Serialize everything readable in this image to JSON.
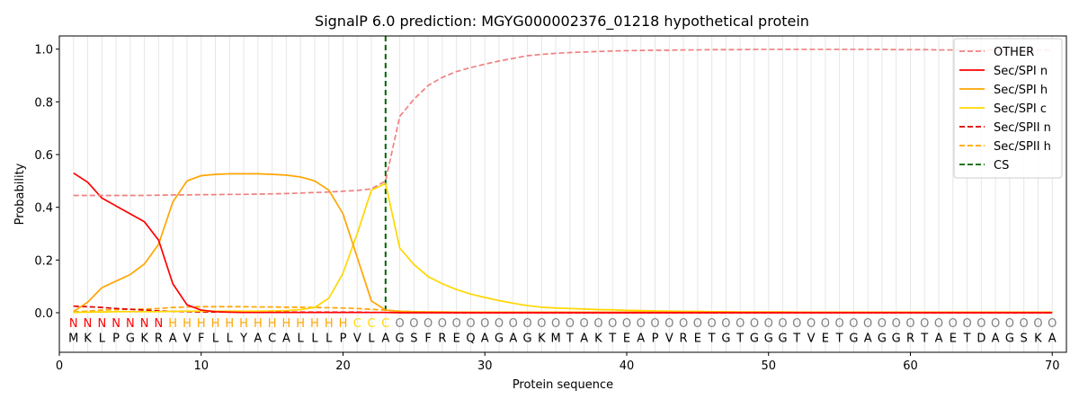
{
  "chart_data": {
    "type": "line",
    "title": "SignalP 6.0 prediction: MGYG000002376_01218 hypothetical protein",
    "xlabel": "Protein sequence",
    "ylabel": "Probability",
    "xlim": [
      0,
      71
    ],
    "ylim": [
      -0.15,
      1.05
    ],
    "x_ticks": [
      0,
      10,
      20,
      30,
      40,
      50,
      60,
      70
    ],
    "y_ticks": [
      0.0,
      0.2,
      0.4,
      0.6,
      0.8,
      1.0
    ],
    "x_tick_labels": [
      "0",
      "10",
      "20",
      "30",
      "40",
      "50",
      "60",
      "70"
    ],
    "y_tick_labels": [
      "0.0",
      "0.2",
      "0.4",
      "0.6",
      "0.8",
      "1.0"
    ],
    "grid": "vertical lines at every residue",
    "legend_position": "top-right",
    "sequence": [
      "M",
      "K",
      "L",
      "P",
      "G",
      "K",
      "R",
      "A",
      "V",
      "F",
      "L",
      "L",
      "Y",
      "A",
      "C",
      "A",
      "L",
      "L",
      "L",
      "P",
      "V",
      "L",
      "A",
      "G",
      "S",
      "F",
      "R",
      "E",
      "Q",
      "A",
      "G",
      "A",
      "G",
      "K",
      "M",
      "T",
      "A",
      "K",
      "T",
      "E",
      "A",
      "P",
      "V",
      "R",
      "E",
      "T",
      "G",
      "T",
      "G",
      "G",
      "G",
      "T",
      "V",
      "E",
      "T",
      "G",
      "A",
      "G",
      "G",
      "R",
      "T",
      "A",
      "E",
      "T",
      "D",
      "A",
      "G",
      "S",
      "K",
      "A"
    ],
    "region_labels": [
      "N",
      "N",
      "N",
      "N",
      "N",
      "N",
      "N",
      "H",
      "H",
      "H",
      "H",
      "H",
      "H",
      "H",
      "H",
      "H",
      "H",
      "H",
      "H",
      "H",
      "C",
      "C",
      "C",
      "O",
      "O",
      "O",
      "O",
      "O",
      "O",
      "O",
      "O",
      "O",
      "O",
      "O",
      "O",
      "O",
      "O",
      "O",
      "O",
      "O",
      "O",
      "O",
      "O",
      "O",
      "O",
      "O",
      "O",
      "O",
      "O",
      "O",
      "O",
      "O",
      "O",
      "O",
      "O",
      "O",
      "O",
      "O",
      "O",
      "O",
      "O",
      "O",
      "O",
      "O",
      "O",
      "O",
      "O",
      "O",
      "O",
      "O"
    ],
    "region_colors": {
      "N": "#ff0000",
      "H": "#ffa500",
      "C": "#ffd700",
      "O": "#808080"
    },
    "cleavage_site": 23,
    "series": [
      {
        "name": "OTHER",
        "color": "#f08080",
        "dash": "dashed",
        "values": [
          0.445,
          0.445,
          0.445,
          0.445,
          0.445,
          0.445,
          0.446,
          0.447,
          0.447,
          0.448,
          0.448,
          0.449,
          0.449,
          0.45,
          0.451,
          0.452,
          0.454,
          0.456,
          0.458,
          0.461,
          0.464,
          0.47,
          0.5,
          0.745,
          0.81,
          0.862,
          0.893,
          0.915,
          0.93,
          0.943,
          0.955,
          0.965,
          0.975,
          0.98,
          0.984,
          0.987,
          0.989,
          0.991,
          0.993,
          0.994,
          0.995,
          0.996,
          0.996,
          0.997,
          0.997,
          0.998,
          0.998,
          0.998,
          0.999,
          0.999,
          0.999,
          0.999,
          0.999,
          0.999,
          0.999,
          0.999,
          0.999,
          0.999,
          0.998,
          0.998,
          0.998,
          0.997,
          0.997,
          0.997,
          0.997,
          0.997,
          0.997,
          0.997,
          0.997,
          0.997
        ]
      },
      {
        "name": "Sec/SPI n",
        "color": "#ff0000",
        "dash": "solid",
        "values": [
          0.53,
          0.495,
          0.435,
          0.405,
          0.375,
          0.345,
          0.275,
          0.11,
          0.03,
          0.01,
          0.004,
          0.002,
          0.001,
          0.001,
          0.001,
          0.001,
          0.001,
          0.001,
          0.001,
          0.001,
          0.001,
          0.001,
          0.001,
          0.0,
          0.0,
          0.0,
          0.0,
          0.0,
          0.0,
          0.0,
          0.0,
          0.0,
          0.0,
          0.0,
          0.0,
          0.0,
          0.0,
          0.0,
          0.0,
          0.0,
          0.0,
          0.0,
          0.0,
          0.0,
          0.0,
          0.0,
          0.0,
          0.0,
          0.0,
          0.0,
          0.0,
          0.0,
          0.0,
          0.0,
          0.0,
          0.0,
          0.0,
          0.0,
          0.0,
          0.0,
          0.0,
          0.0,
          0.0,
          0.0,
          0.0,
          0.0,
          0.0,
          0.0,
          0.0,
          0.0
        ]
      },
      {
        "name": "Sec/SPI h",
        "color": "#ffa500",
        "dash": "solid",
        "values": [
          0.005,
          0.04,
          0.095,
          0.12,
          0.145,
          0.185,
          0.26,
          0.42,
          0.5,
          0.52,
          0.525,
          0.527,
          0.527,
          0.527,
          0.525,
          0.522,
          0.515,
          0.5,
          0.465,
          0.375,
          0.21,
          0.045,
          0.01,
          0.005,
          0.004,
          0.003,
          0.003,
          0.002,
          0.002,
          0.002,
          0.002,
          0.002,
          0.002,
          0.002,
          0.002,
          0.002,
          0.002,
          0.002,
          0.002,
          0.002,
          0.002,
          0.002,
          0.002,
          0.002,
          0.002,
          0.002,
          0.002,
          0.002,
          0.002,
          0.002,
          0.002,
          0.002,
          0.002,
          0.002,
          0.002,
          0.002,
          0.002,
          0.002,
          0.002,
          0.002,
          0.002,
          0.002,
          0.002,
          0.002,
          0.002,
          0.002,
          0.002,
          0.002,
          0.002,
          0.002
        ]
      },
      {
        "name": "Sec/SPI c",
        "color": "#ffd700",
        "dash": "solid",
        "values": [
          0.001,
          0.002,
          0.003,
          0.004,
          0.004,
          0.004,
          0.004,
          0.005,
          0.006,
          0.006,
          0.006,
          0.006,
          0.006,
          0.006,
          0.007,
          0.008,
          0.012,
          0.02,
          0.055,
          0.15,
          0.3,
          0.465,
          0.49,
          0.245,
          0.183,
          0.137,
          0.11,
          0.088,
          0.071,
          0.058,
          0.046,
          0.036,
          0.027,
          0.021,
          0.018,
          0.016,
          0.014,
          0.012,
          0.011,
          0.009,
          0.008,
          0.007,
          0.006,
          0.005,
          0.005,
          0.004,
          0.004,
          0.003,
          0.003,
          0.003,
          0.003,
          0.002,
          0.002,
          0.002,
          0.002,
          0.002,
          0.002,
          0.002,
          0.002,
          0.002,
          0.002,
          0.002,
          0.002,
          0.002,
          0.002,
          0.002,
          0.002,
          0.002,
          0.002,
          0.002
        ]
      },
      {
        "name": "Sec/SPII n",
        "color": "#dd0000",
        "dash": "dashed",
        "values": [
          0.025,
          0.023,
          0.02,
          0.016,
          0.013,
          0.01,
          0.007,
          0.005,
          0.004,
          0.003,
          0.003,
          0.003,
          0.002,
          0.002,
          0.002,
          0.002,
          0.002,
          0.002,
          0.002,
          0.002,
          0.002,
          0.001,
          0.001,
          0.001,
          0.001,
          0.001,
          0.001,
          0.0,
          0.0,
          0.0,
          0.0,
          0.0,
          0.0,
          0.0,
          0.0,
          0.0,
          0.0,
          0.0,
          0.0,
          0.0,
          0.0,
          0.0,
          0.0,
          0.0,
          0.0,
          0.0,
          0.0,
          0.0,
          0.0,
          0.0,
          0.0,
          0.0,
          0.0,
          0.0,
          0.0,
          0.0,
          0.0,
          0.0,
          0.0,
          0.0,
          0.0,
          0.0,
          0.0,
          0.0,
          0.0,
          0.0,
          0.0,
          0.0,
          0.0,
          0.0
        ]
      },
      {
        "name": "Sec/SPII h",
        "color": "#ffa500",
        "dash": "dashed",
        "values": [
          0.003,
          0.006,
          0.01,
          0.012,
          0.013,
          0.014,
          0.016,
          0.02,
          0.022,
          0.023,
          0.023,
          0.023,
          0.023,
          0.022,
          0.022,
          0.021,
          0.021,
          0.02,
          0.019,
          0.018,
          0.016,
          0.013,
          0.01,
          0.006,
          0.004,
          0.003,
          0.002,
          0.002,
          0.001,
          0.001,
          0.001,
          0.001,
          0.001,
          0.001,
          0.001,
          0.001,
          0.001,
          0.001,
          0.001,
          0.001,
          0.001,
          0.001,
          0.001,
          0.001,
          0.001,
          0.001,
          0.001,
          0.001,
          0.001,
          0.001,
          0.001,
          0.001,
          0.001,
          0.001,
          0.001,
          0.001,
          0.001,
          0.001,
          0.001,
          0.001,
          0.001,
          0.001,
          0.001,
          0.001,
          0.001,
          0.001,
          0.001,
          0.001,
          0.001,
          0.001
        ]
      }
    ],
    "legend": [
      {
        "label": "OTHER",
        "color": "#f08080",
        "dash": "dashed"
      },
      {
        "label": "Sec/SPI n",
        "color": "#ff0000",
        "dash": "solid"
      },
      {
        "label": "Sec/SPI h",
        "color": "#ffa500",
        "dash": "solid"
      },
      {
        "label": "Sec/SPI c",
        "color": "#ffd700",
        "dash": "solid"
      },
      {
        "label": "Sec/SPII n",
        "color": "#dd0000",
        "dash": "dashed"
      },
      {
        "label": "Sec/SPII h",
        "color": "#ffa500",
        "dash": "dashed"
      },
      {
        "label": "CS",
        "color": "#006400",
        "dash": "dashed"
      }
    ]
  }
}
